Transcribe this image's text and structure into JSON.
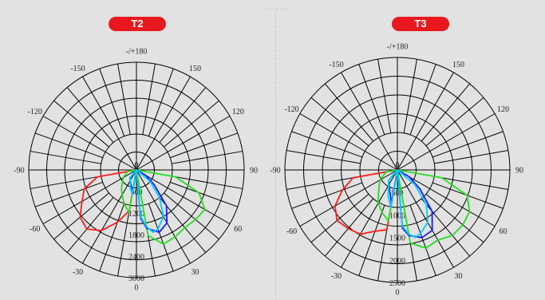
{
  "chart_data": [
    {
      "type": "polar",
      "title": "T2",
      "angle_labels": [
        "0",
        "30",
        "60",
        "90",
        "120",
        "150",
        "180",
        "-150",
        "-120",
        "-90",
        "-60",
        "-30"
      ],
      "angle_top_label": "-/+180",
      "radial_ticks": [
        600,
        1200,
        1800,
        2400,
        3000
      ],
      "radial_max": 3000,
      "grid": true,
      "series": [
        {
          "color": "#ff1a1a",
          "points": [
            [
              0,
              0
            ],
            [
              -10,
              1150
            ],
            [
              -20,
              1550
            ],
            [
              -30,
              1950
            ],
            [
              -40,
              2150
            ],
            [
              -50,
              2050
            ],
            [
              -60,
              1750
            ],
            [
              -70,
              1550
            ],
            [
              -80,
              1100
            ],
            [
              -90,
              0
            ]
          ]
        },
        {
          "color": "#22dd22",
          "points": [
            [
              0,
              0
            ],
            [
              10,
              1850
            ],
            [
              20,
              2200
            ],
            [
              30,
              2150
            ],
            [
              40,
              2100
            ],
            [
              50,
              2150
            ],
            [
              60,
              2200
            ],
            [
              70,
              1850
            ],
            [
              80,
              1100
            ],
            [
              90,
              0
            ],
            [
              -10,
              1200
            ],
            [
              -20,
              1000
            ],
            [
              -30,
              800
            ],
            [
              -40,
              650
            ],
            [
              -60,
              420
            ],
            [
              -80,
              250
            ],
            [
              -90,
              0
            ]
          ]
        },
        {
          "color": "#1a1aff",
          "points": [
            [
              0,
              0
            ],
            [
              5,
              1350
            ],
            [
              10,
              1650
            ],
            [
              20,
              1850
            ],
            [
              30,
              1700
            ],
            [
              40,
              1300
            ],
            [
              50,
              650
            ],
            [
              60,
              300
            ],
            [
              90,
              0
            ],
            [
              -10,
              600
            ],
            [
              -20,
              450
            ],
            [
              -40,
              280
            ],
            [
              -90,
              0
            ]
          ]
        },
        {
          "color": "#00ccff",
          "points": [
            [
              0,
              0
            ],
            [
              5,
              1300
            ],
            [
              10,
              1600
            ],
            [
              15,
              1800
            ],
            [
              20,
              1750
            ],
            [
              30,
              1500
            ],
            [
              40,
              1000
            ],
            [
              50,
              500
            ],
            [
              90,
              0
            ],
            [
              -10,
              700
            ],
            [
              -20,
              500
            ],
            [
              -40,
              260
            ],
            [
              -90,
              0
            ]
          ]
        }
      ]
    },
    {
      "type": "polar",
      "title": "T3",
      "angle_labels": [
        "0",
        "30",
        "60",
        "90",
        "120",
        "150",
        "180",
        "-150",
        "-120",
        "-90",
        "-60",
        "-30"
      ],
      "angle_top_label": "-/+180",
      "radial_ticks": [
        500,
        1000,
        1500,
        2000,
        2500
      ],
      "radial_max": 2500,
      "grid": true,
      "series": [
        {
          "color": "#ff1a1a",
          "points": [
            [
              0,
              0
            ],
            [
              -10,
              1350
            ],
            [
              -20,
              1450
            ],
            [
              -30,
              1650
            ],
            [
              -40,
              1700
            ],
            [
              -50,
              1750
            ],
            [
              -60,
              1600
            ],
            [
              -70,
              1300
            ],
            [
              -80,
              1000
            ],
            [
              -90,
              0
            ]
          ]
        },
        {
          "color": "#22dd22",
          "points": [
            [
              0,
              0
            ],
            [
              10,
              1650
            ],
            [
              20,
              1850
            ],
            [
              30,
              1800
            ],
            [
              40,
              1900
            ],
            [
              50,
              1900
            ],
            [
              60,
              1850
            ],
            [
              70,
              1650
            ],
            [
              80,
              1000
            ],
            [
              90,
              0
            ],
            [
              -10,
              1150
            ],
            [
              -20,
              1000
            ],
            [
              -30,
              850
            ],
            [
              -40,
              650
            ],
            [
              -60,
              450
            ],
            [
              -80,
              250
            ],
            [
              -90,
              0
            ]
          ]
        },
        {
          "color": "#1a1aff",
          "points": [
            [
              0,
              0
            ],
            [
              5,
              1300
            ],
            [
              10,
              1480
            ],
            [
              20,
              1600
            ],
            [
              30,
              1550
            ],
            [
              40,
              1200
            ],
            [
              50,
              650
            ],
            [
              60,
              300
            ],
            [
              90,
              0
            ],
            [
              -10,
              750
            ],
            [
              -20,
              500
            ],
            [
              -40,
              300
            ],
            [
              -90,
              0
            ]
          ]
        },
        {
          "color": "#00ccff",
          "points": [
            [
              0,
              0
            ],
            [
              5,
              1250
            ],
            [
              10,
              1450
            ],
            [
              15,
              1550
            ],
            [
              20,
              1500
            ],
            [
              30,
              1350
            ],
            [
              40,
              1000
            ],
            [
              50,
              500
            ],
            [
              90,
              0
            ],
            [
              -10,
              850
            ],
            [
              -20,
              600
            ],
            [
              -40,
              300
            ],
            [
              -90,
              0
            ]
          ]
        }
      ]
    }
  ]
}
